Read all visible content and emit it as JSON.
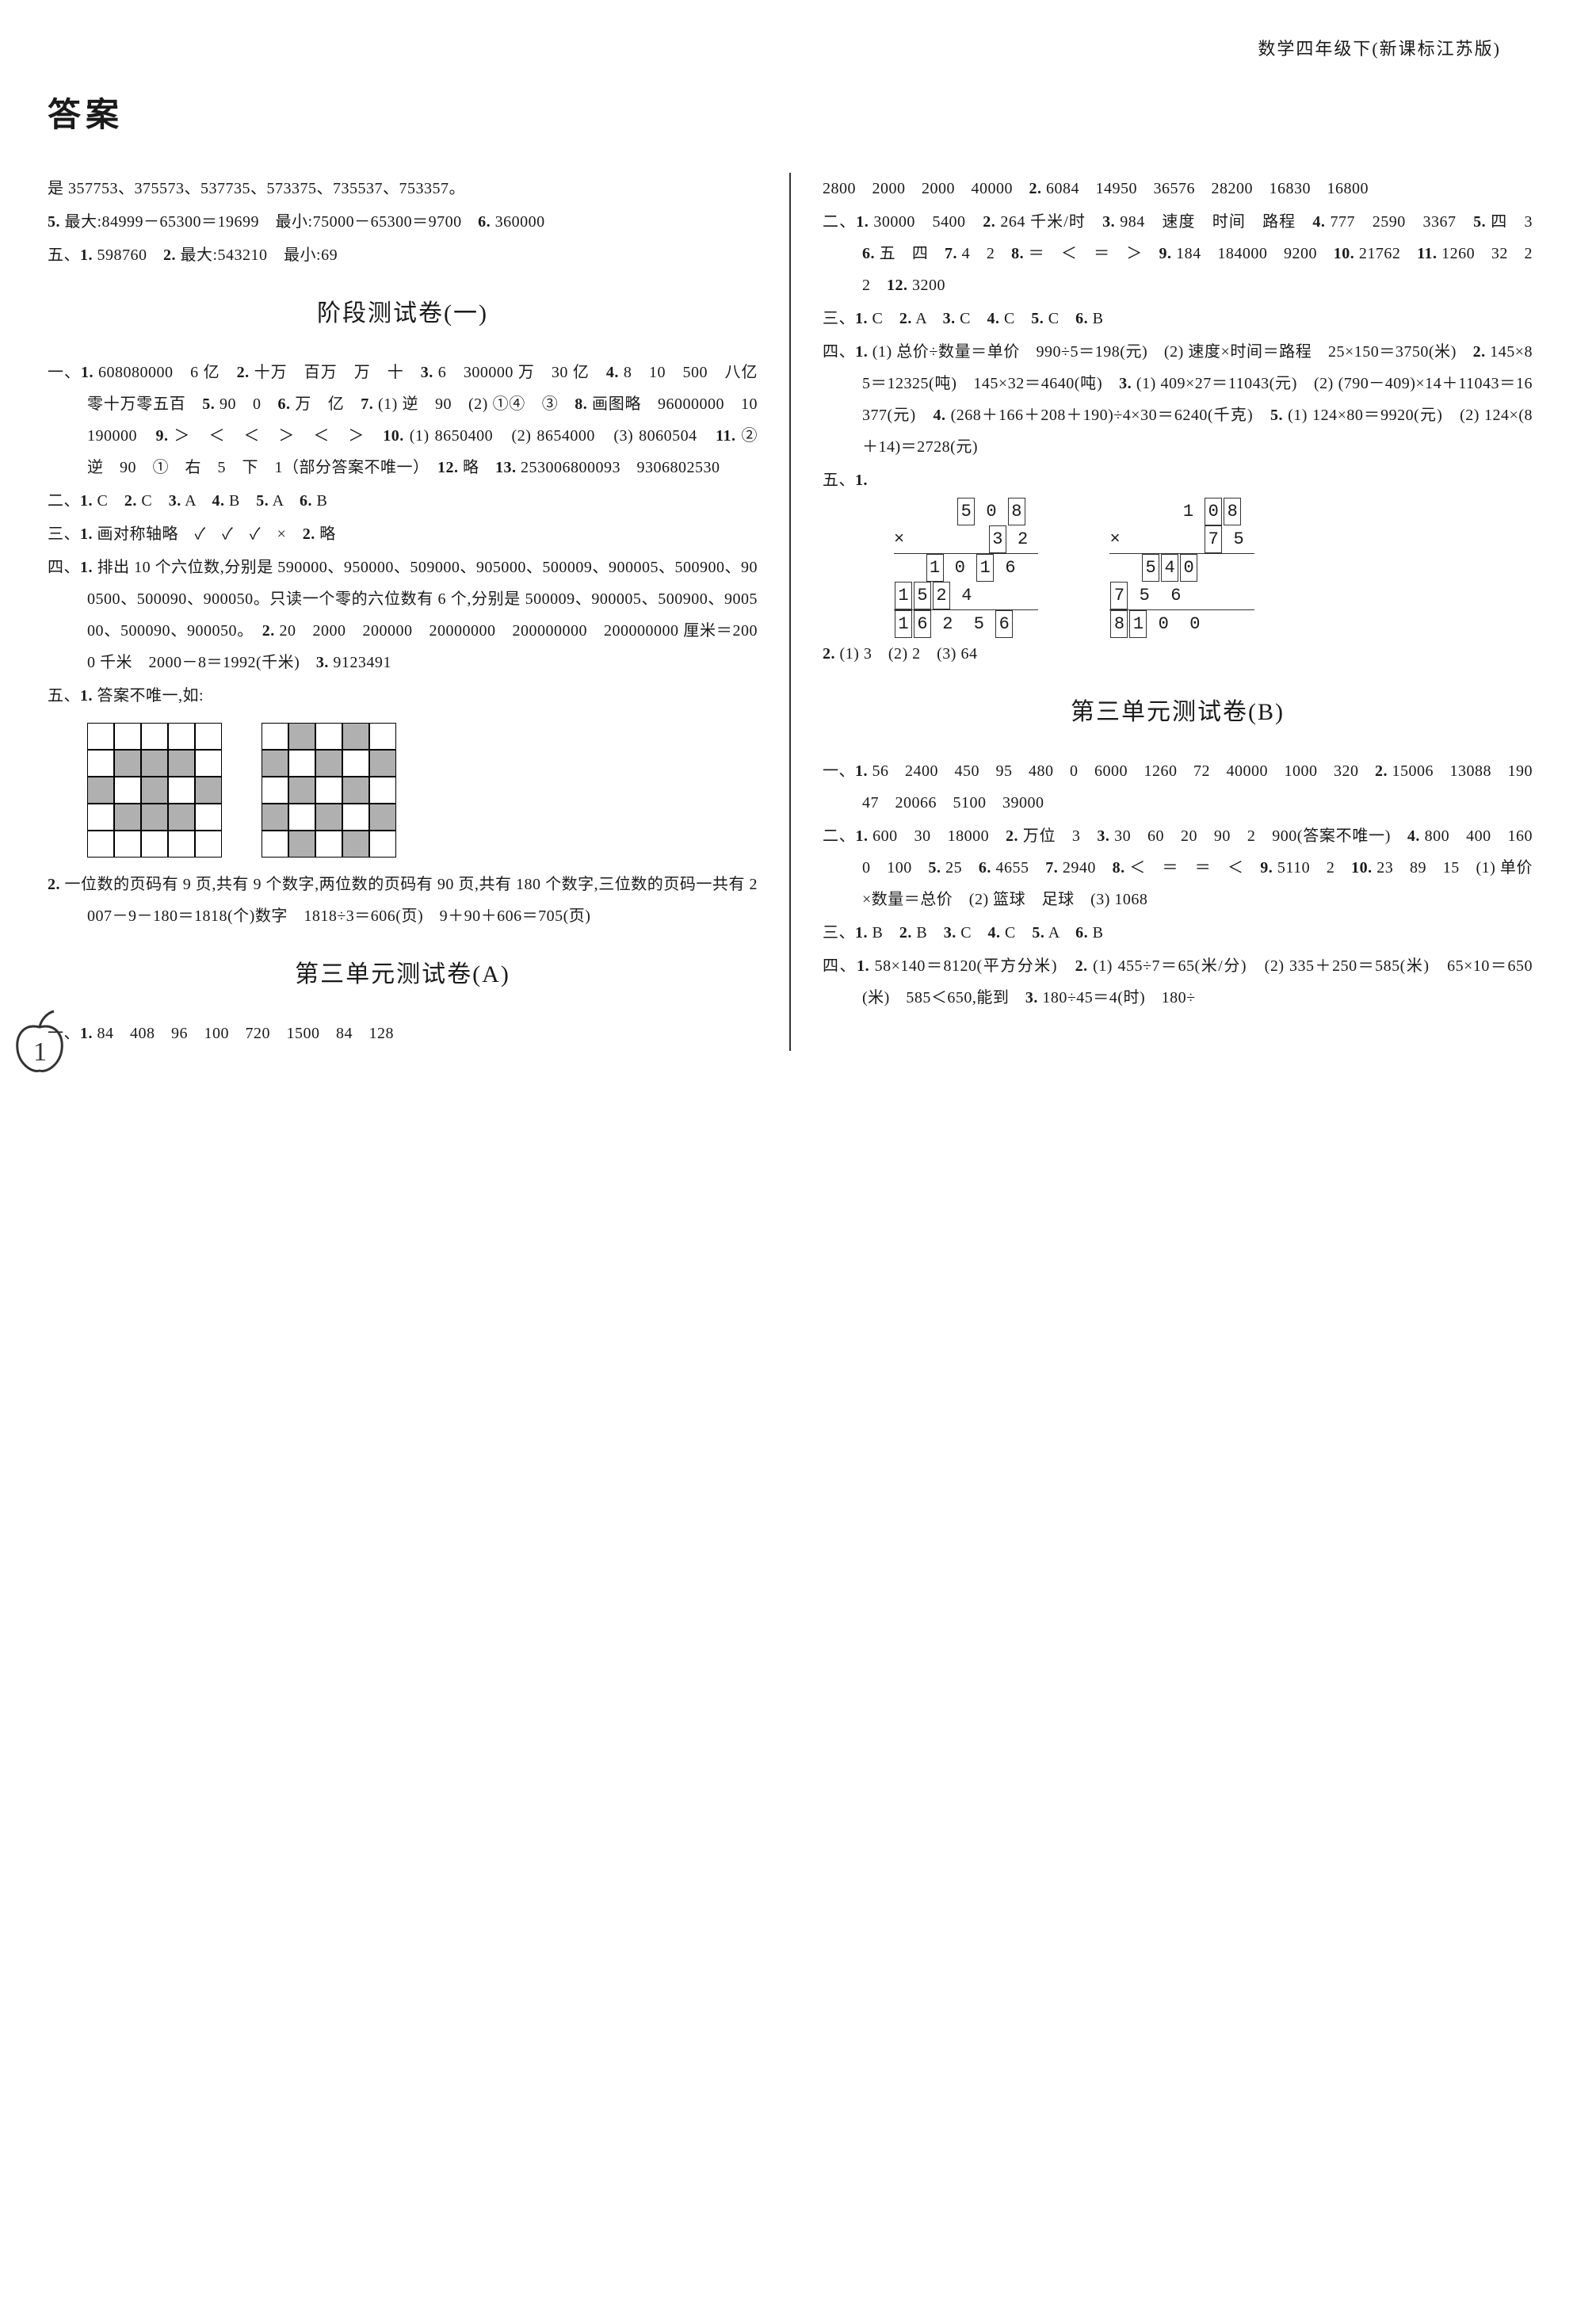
{
  "header": "数学四年级下(新课标江苏版)",
  "title": "答案",
  "left": {
    "prelim": [
      "是 357753、375573、537735、573375、735537、753357。",
      "<b>5.</b> 最大:84999－65300＝19699　最小:75000－65300＝9700　<b>6.</b> 360000",
      "五、<b>1.</b> 598760　<b>2.</b> 最大:543210　最小:69"
    ],
    "stage1_title": "阶段测试卷(一)",
    "stage1": [
      "一、<b>1.</b> 608080000　6 亿　<b>2.</b> 十万　百万　万　十　<b>3.</b> 6　300000 万　30 亿　<b>4.</b> 8　10　500　八亿零十万零五百　<b>5.</b> 90　0　<b>6.</b> 万　亿　<b>7.</b> (1) 逆　90　(2) ①④　③　<b>8.</b> 画图略　96000000　10190000　<b>9.</b> ＞　＜　＜　＞　＜　＞　<b>10.</b> (1) 8650400　(2) 8654000　(3) 8060504　<b>11.</b> ②　逆　90　①　右　5　下　1（部分答案不唯一）　<b>12.</b> 略　<b>13.</b> 253006800093　9306802530",
      "二、<b>1.</b> C　<b>2.</b> C　<b>3.</b> A　<b>4.</b> B　<b>5.</b> A　<b>6.</b> B",
      "三、<b>1.</b> 画对称轴略　✓　✓　✓　×　<b>2.</b> 略",
      "四、<b>1.</b> 排出 10 个六位数,分别是 590000、950000、509000、905000、500009、900005、500900、900500、500090、900050。只读一个零的六位数有 6 个,分别是 500009、900005、500900、900500、500090、900050。　<b>2.</b> 20　2000　200000　20000000　200000000　200000000 厘米＝2000 千米　2000－8＝1992(千米)　<b>3.</b> 9123491",
      "五、<b>1.</b> 答案不唯一,如:"
    ],
    "grid1": [
      [
        0,
        0,
        0,
        0,
        0
      ],
      [
        0,
        1,
        1,
        1,
        0
      ],
      [
        1,
        0,
        1,
        0,
        1
      ],
      [
        0,
        1,
        1,
        1,
        0
      ],
      [
        0,
        0,
        0,
        0,
        0
      ]
    ],
    "grid2": [
      [
        0,
        1,
        0,
        1,
        0
      ],
      [
        1,
        0,
        1,
        0,
        1
      ],
      [
        0,
        1,
        0,
        1,
        0
      ],
      [
        1,
        0,
        1,
        0,
        1
      ],
      [
        0,
        1,
        0,
        1,
        0
      ]
    ],
    "after_grids": [
      "<b>2.</b> 一位数的页码有 9 页,共有 9 个数字,两位数的页码有 90 页,共有 180 个数字,三位数的页码一共有 2007－9－180＝1818(个)数字　1818÷3＝606(页)　9＋90＋606＝705(页)"
    ],
    "unit3a_title": "第三单元测试卷(A)",
    "unit3a": [
      "一、<b>1.</b> 84　408　96　100　720　1500　84　128"
    ],
    "page_number": "1"
  },
  "right": {
    "toplines": [
      "2800　2000　2000　40000　<b>2.</b> 6084　14950　36576　28200　16830　16800",
      "二、<b>1.</b> 30000　5400　<b>2.</b> 264 千米/时　<b>3.</b> 984　速度　时间　路程　<b>4.</b> 777　2590　3367　<b>5.</b> 四　3　<b>6.</b> 五　四　<b>7.</b> 4　2　<b>8.</b> ＝　＜　＝　＞　<b>9.</b> 184　184000　9200　<b>10.</b> 21762　<b>11.</b> 1260　32　22　<b>12.</b> 3200",
      "三、<b>1.</b> C　<b>2.</b> A　<b>3.</b> C　<b>4.</b> C　<b>5.</b> C　<b>6.</b> B",
      "四、<b>1.</b> (1) 总价÷数量＝单价　990÷5＝198(元)　(2) 速度×时间＝路程　25×150＝3750(米)　<b>2.</b> 145×85＝12325(吨)　145×32＝4640(吨)　<b>3.</b> (1) 409×27＝11043(元)　(2) (790－409)×14＋11043＝16377(元)　<b>4.</b> (268＋166＋208＋190)÷4×30＝6240(千克)　<b>5.</b> (1) 124×80＝9920(元)　(2) 124×(8＋14)＝2728(元)",
      "五、<b>1.</b>"
    ],
    "mult1": {
      "r1": [
        "5",
        "0",
        "8"
      ],
      "r2": [
        "3",
        "2"
      ],
      "r3": [
        "1",
        "0",
        "1",
        "6"
      ],
      "r4": [
        "1",
        "5",
        "2",
        "4"
      ],
      "r5": [
        "1",
        "6",
        "2",
        "5",
        "6"
      ],
      "boxes_r1": [
        1,
        0,
        1
      ],
      "boxes_r2": [
        1,
        0
      ],
      "boxes_r3": [
        1,
        0,
        1,
        0
      ],
      "boxes_r4": [
        1,
        1,
        1,
        0
      ],
      "boxes_r5": [
        1,
        1,
        0,
        0,
        1
      ]
    },
    "mult2": {
      "r1": [
        "1",
        "0",
        "8"
      ],
      "r2": [
        "7",
        "5"
      ],
      "r3": [
        "5",
        "4",
        "0"
      ],
      "r4": [
        "7",
        "5",
        "6"
      ],
      "r5": [
        "8",
        "1",
        "0",
        "0"
      ],
      "boxes_r1": [
        0,
        1,
        1
      ],
      "boxes_r2": [
        1,
        0
      ],
      "boxes_r3": [
        1,
        1,
        1
      ],
      "boxes_r4": [
        1,
        0,
        0
      ],
      "boxes_r5": [
        1,
        1,
        0,
        0
      ]
    },
    "after_mult": [
      "<b>2.</b> (1) 3　(2) 2　(3) 64"
    ],
    "unit3b_title": "第三单元测试卷(B)",
    "unit3b": [
      "一、<b>1.</b> 56　2400　450　95　480　0　6000　1260　72　40000　1000　320　<b>2.</b> 15006　13088　19047　20066　5100　39000",
      "二、<b>1.</b> 600　30　18000　<b>2.</b> 万位　3　<b>3.</b> 30　60　20　90　2　900(答案不唯一)　<b>4.</b> 800　400　1600　100　<b>5.</b> 25　<b>6.</b> 4655　<b>7.</b> 2940　<b>8.</b> ＜　＝　＝　＜　<b>9.</b> 5110　2　<b>10.</b> 23　89　15　(1) 单价×数量＝总价　(2) 篮球　足球　(3) 1068",
      "三、<b>1.</b> B　<b>2.</b> B　<b>3.</b> C　<b>4.</b> C　<b>5.</b> A　<b>6.</b> B",
      "四、<b>1.</b> 58×140＝8120(平方分米)　<b>2.</b> (1) 455÷7＝65(米/分)　(2) 335＋250＝585(米)　65×10＝650(米)　585＜650,能到　<b>3.</b> 180÷45＝4(时)　180÷"
    ]
  }
}
